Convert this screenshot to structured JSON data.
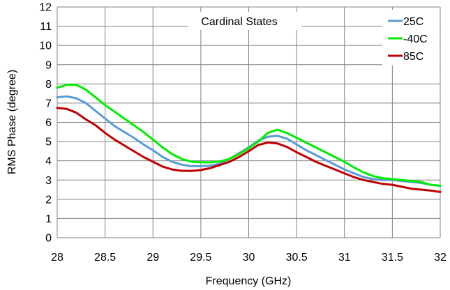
{
  "chart_data": {
    "type": "line",
    "title": "Cardinal States",
    "xlabel": "Frequency (GHz)",
    "ylabel": "RMS Phase (degree)",
    "xlim": [
      28,
      32
    ],
    "ylim": [
      0,
      12
    ],
    "xticks": [
      28,
      28.5,
      29,
      29.5,
      30,
      30.5,
      31,
      31.5,
      32
    ],
    "xtick_labels": [
      "28",
      "28.5",
      "29",
      "29.5",
      "30",
      "30.5",
      "31",
      "31.5",
      "32"
    ],
    "yticks": [
      0,
      1,
      2,
      3,
      4,
      5,
      6,
      7,
      8,
      9,
      10,
      11,
      12
    ],
    "ytick_labels": [
      "0",
      "1",
      "2",
      "3",
      "4",
      "5",
      "6",
      "7",
      "8",
      "9",
      "10",
      "11",
      "12"
    ],
    "grid": true,
    "legend_position": "top-right",
    "series": [
      {
        "name": "25C",
        "color": "#5b9bd5",
        "x": [
          28,
          28.1,
          28.2,
          28.3,
          28.4,
          28.5,
          28.6,
          28.7,
          28.8,
          28.9,
          29,
          29.1,
          29.2,
          29.3,
          29.4,
          29.5,
          29.6,
          29.7,
          29.8,
          29.9,
          30,
          30.1,
          30.2,
          30.3,
          30.4,
          30.5,
          30.6,
          30.7,
          30.8,
          30.9,
          31,
          31.1,
          31.2,
          31.3,
          31.4,
          31.5,
          31.6,
          31.7,
          31.8,
          31.9,
          32
        ],
        "y": [
          7.3,
          7.35,
          7.25,
          7.0,
          6.6,
          6.2,
          5.8,
          5.5,
          5.2,
          4.85,
          4.55,
          4.2,
          3.95,
          3.8,
          3.72,
          3.72,
          3.75,
          3.85,
          4.1,
          4.4,
          4.7,
          5.05,
          5.25,
          5.3,
          5.15,
          4.85,
          4.55,
          4.3,
          4.05,
          3.8,
          3.55,
          3.35,
          3.15,
          3.05,
          3.0,
          3.0,
          2.95,
          2.9,
          2.85,
          2.75,
          2.7
        ]
      },
      {
        "name": "-40C",
        "color": "#00ee00",
        "x": [
          28,
          28.1,
          28.2,
          28.3,
          28.4,
          28.5,
          28.6,
          28.7,
          28.8,
          28.9,
          29,
          29.1,
          29.2,
          29.3,
          29.4,
          29.5,
          29.6,
          29.7,
          29.8,
          29.9,
          30,
          30.1,
          30.2,
          30.3,
          30.4,
          30.5,
          30.6,
          30.7,
          30.8,
          30.9,
          31,
          31.1,
          31.2,
          31.3,
          31.4,
          31.5,
          31.6,
          31.7,
          31.8,
          31.9,
          32
        ],
        "y": [
          7.8,
          7.95,
          7.95,
          7.7,
          7.3,
          6.9,
          6.55,
          6.2,
          5.85,
          5.5,
          5.1,
          4.7,
          4.35,
          4.1,
          3.95,
          3.92,
          3.92,
          3.97,
          4.1,
          4.35,
          4.65,
          5.0,
          5.45,
          5.62,
          5.45,
          5.2,
          4.95,
          4.7,
          4.45,
          4.2,
          3.95,
          3.65,
          3.4,
          3.2,
          3.1,
          3.05,
          3.0,
          2.95,
          2.9,
          2.75,
          2.7
        ]
      },
      {
        "name": "85C",
        "color": "#c00000",
        "x": [
          28,
          28.1,
          28.2,
          28.3,
          28.4,
          28.5,
          28.6,
          28.7,
          28.8,
          28.9,
          29,
          29.1,
          29.2,
          29.3,
          29.4,
          29.5,
          29.6,
          29.7,
          29.8,
          29.9,
          30,
          30.1,
          30.2,
          30.3,
          30.4,
          30.5,
          30.6,
          30.7,
          30.8,
          30.9,
          31,
          31.1,
          31.2,
          31.3,
          31.4,
          31.5,
          31.6,
          31.7,
          31.8,
          31.9,
          32
        ],
        "y": [
          6.75,
          6.7,
          6.5,
          6.15,
          5.85,
          5.45,
          5.1,
          4.8,
          4.5,
          4.2,
          3.95,
          3.7,
          3.55,
          3.48,
          3.47,
          3.52,
          3.62,
          3.78,
          3.95,
          4.2,
          4.5,
          4.82,
          4.95,
          4.9,
          4.72,
          4.45,
          4.2,
          3.95,
          3.75,
          3.55,
          3.35,
          3.15,
          3.0,
          2.9,
          2.8,
          2.75,
          2.65,
          2.55,
          2.5,
          2.45,
          2.38
        ]
      }
    ]
  }
}
